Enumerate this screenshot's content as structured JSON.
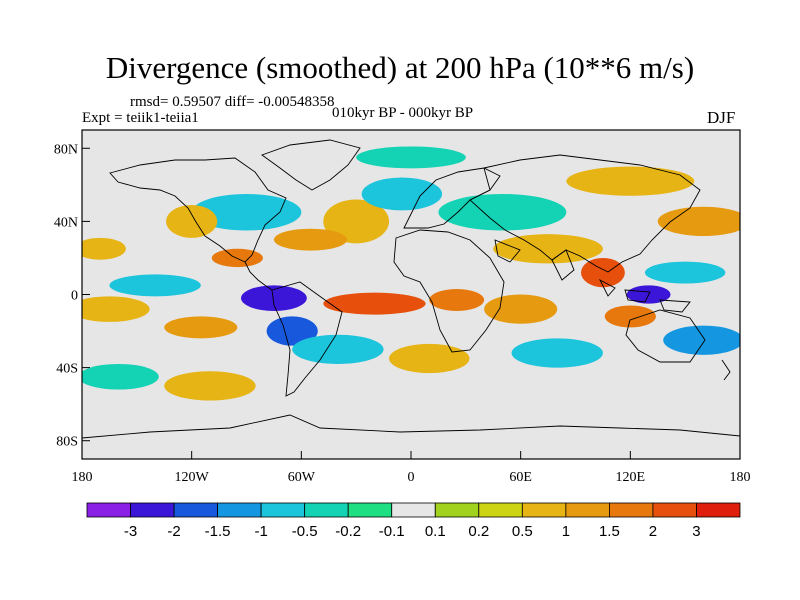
{
  "title": "Divergence (smoothed) at 200 hPa (10**6 m/s)",
  "stats_line": "rmsd= 0.59507 diff= -0.00548358",
  "experiment": "Expt = teiik1-teiia1",
  "period": "010kyr BP - 000kyr BP",
  "season": "DJF",
  "y_ticks": [
    "80N",
    "40N",
    "0",
    "40S",
    "80S"
  ],
  "x_ticks": [
    "180",
    "120W",
    "60W",
    "0",
    "60E",
    "120E",
    "180"
  ],
  "colorbar": {
    "colors": [
      "#8a1fe6",
      "#3c16d8",
      "#1858dc",
      "#1496e0",
      "#1cc4dc",
      "#14d2b4",
      "#1ee082",
      "#e6e6e6",
      "#a0d21e",
      "#cdd414",
      "#e6b414",
      "#e69a10",
      "#e6780e",
      "#e6500c",
      "#e01e0c"
    ],
    "labels": [
      "-3",
      "-2",
      "-1.5",
      "-1",
      "-0.5",
      "-0.2",
      "-0.1",
      "0.1",
      "0.2",
      "0.5",
      "1",
      "1.5",
      "2",
      "3"
    ]
  },
  "map": {
    "lon_range": [
      -180,
      180
    ],
    "lat_range": [
      -90,
      90
    ],
    "background_color": "#e6e6e6",
    "anomalies": [
      {
        "lon": -75,
        "lat": -2,
        "rx": 18,
        "ry": 7,
        "level": 1
      },
      {
        "lon": -65,
        "lat": -20,
        "rx": 14,
        "ry": 8,
        "level": 2
      },
      {
        "lon": -140,
        "lat": 5,
        "rx": 25,
        "ry": 6,
        "level": 4
      },
      {
        "lon": -165,
        "lat": -8,
        "rx": 22,
        "ry": 7,
        "level": 10
      },
      {
        "lon": -115,
        "lat": -18,
        "rx": 20,
        "ry": 6,
        "level": 11
      },
      {
        "lon": -20,
        "lat": -5,
        "rx": 28,
        "ry": 6,
        "level": 13
      },
      {
        "lon": 25,
        "lat": -3,
        "rx": 15,
        "ry": 6,
        "level": 12
      },
      {
        "lon": 60,
        "lat": -8,
        "rx": 20,
        "ry": 8,
        "level": 11
      },
      {
        "lon": 105,
        "lat": 12,
        "rx": 12,
        "ry": 8,
        "level": 13
      },
      {
        "lon": 130,
        "lat": 0,
        "rx": 12,
        "ry": 5,
        "level": 1
      },
      {
        "lon": 150,
        "lat": 12,
        "rx": 22,
        "ry": 6,
        "level": 4
      },
      {
        "lon": 160,
        "lat": -25,
        "rx": 22,
        "ry": 8,
        "level": 3
      },
      {
        "lon": 120,
        "lat": -12,
        "rx": 14,
        "ry": 6,
        "level": 12
      },
      {
        "lon": -90,
        "lat": 45,
        "rx": 30,
        "ry": 10,
        "level": 4
      },
      {
        "lon": -120,
        "lat": 40,
        "rx": 14,
        "ry": 9,
        "level": 10
      },
      {
        "lon": -30,
        "lat": 40,
        "rx": 18,
        "ry": 12,
        "level": 10
      },
      {
        "lon": -5,
        "lat": 55,
        "rx": 22,
        "ry": 9,
        "level": 4
      },
      {
        "lon": 50,
        "lat": 45,
        "rx": 35,
        "ry": 10,
        "level": 5
      },
      {
        "lon": 75,
        "lat": 25,
        "rx": 30,
        "ry": 8,
        "level": 10
      },
      {
        "lon": 160,
        "lat": 40,
        "rx": 25,
        "ry": 8,
        "level": 11
      },
      {
        "lon": -40,
        "lat": -30,
        "rx": 25,
        "ry": 8,
        "level": 4
      },
      {
        "lon": 10,
        "lat": -35,
        "rx": 22,
        "ry": 8,
        "level": 10
      },
      {
        "lon": 80,
        "lat": -32,
        "rx": 25,
        "ry": 8,
        "level": 4
      },
      {
        "lon": -160,
        "lat": -45,
        "rx": 22,
        "ry": 7,
        "level": 5
      },
      {
        "lon": -110,
        "lat": -50,
        "rx": 25,
        "ry": 8,
        "level": 10
      },
      {
        "lon": -55,
        "lat": 30,
        "rx": 20,
        "ry": 6,
        "level": 11
      },
      {
        "lon": -95,
        "lat": 20,
        "rx": 14,
        "ry": 5,
        "level": 12
      },
      {
        "lon": 0,
        "lat": 75,
        "rx": 30,
        "ry": 6,
        "level": 5
      },
      {
        "lon": 120,
        "lat": 62,
        "rx": 35,
        "ry": 8,
        "level": 10
      },
      {
        "lon": -170,
        "lat": 25,
        "rx": 14,
        "ry": 6,
        "level": 10
      }
    ]
  }
}
